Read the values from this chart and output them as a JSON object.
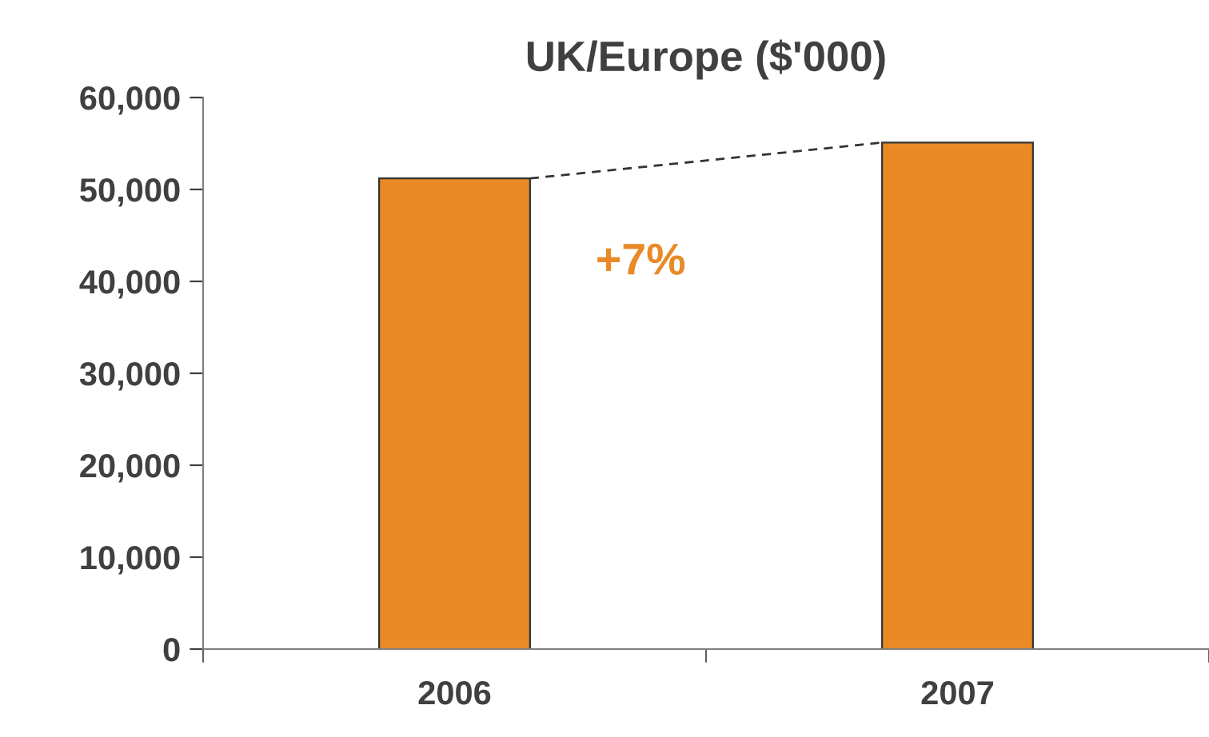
{
  "chart_data": {
    "type": "bar",
    "title": "UK/Europe ($'000)",
    "categories": [
      "2006",
      "2007"
    ],
    "series": [
      {
        "color": "#e98a27",
        "values": [
          51200,
          55100
        ]
      }
    ],
    "ylim": [
      0,
      60000
    ],
    "yticks": [
      {
        "value": 0,
        "label": "0"
      },
      {
        "value": 10000,
        "label": "10,000"
      },
      {
        "value": 20000,
        "label": "20,000"
      },
      {
        "value": 30000,
        "label": "30,000"
      },
      {
        "value": 40000,
        "label": "40,000"
      },
      {
        "value": 50000,
        "label": "50,000"
      },
      {
        "value": 60000,
        "label": "60,000"
      }
    ],
    "annotations": [
      "+7%"
    ],
    "grid": false,
    "legend": false
  }
}
